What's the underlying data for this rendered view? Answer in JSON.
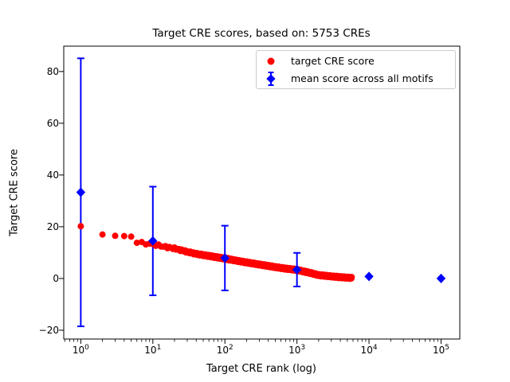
{
  "title": "Target CRE scores, based on: 5753 CREs",
  "axes": {
    "xlabel": "Target CRE rank (log)",
    "ylabel": "Target CRE score",
    "x_scale": "log",
    "x_ticks": [
      {
        "base": "10",
        "exp": "0",
        "value": 1
      },
      {
        "base": "10",
        "exp": "1",
        "value": 10
      },
      {
        "base": "10",
        "exp": "2",
        "value": 100
      },
      {
        "base": "10",
        "exp": "3",
        "value": 1000
      },
      {
        "base": "10",
        "exp": "4",
        "value": 10000
      },
      {
        "base": "10",
        "exp": "5",
        "value": 100000
      }
    ],
    "y_ticks": [
      {
        "label": "−20",
        "value": -20
      },
      {
        "label": "0",
        "value": 0
      },
      {
        "label": "20",
        "value": 20
      },
      {
        "label": "40",
        "value": 40
      },
      {
        "label": "60",
        "value": 60
      },
      {
        "label": "80",
        "value": 80
      }
    ]
  },
  "legend": {
    "items": [
      {
        "label": "target CRE score",
        "marker": "circle",
        "color": "#ff0000"
      },
      {
        "label": "mean score across all motifs",
        "marker": "diamond-errorbar",
        "color": "#0000ff"
      }
    ]
  },
  "colors": {
    "red": "#ff0000",
    "blue": "#0000ff",
    "text": "#000000",
    "spine": "#000000",
    "legend_border": "#cccccc",
    "background": "#ffffff"
  },
  "chart_data": {
    "type": "scatter",
    "title": "Target CRE scores, based on: 5753 CREs",
    "xlabel": "Target CRE rank (log)",
    "ylabel": "Target CRE score",
    "x_scale": "log",
    "grid": false,
    "legend_position": "upper right",
    "xlim": [
      0.58,
      182000
    ],
    "ylim": [
      -23.4,
      89.8
    ],
    "x_tick_values": [
      1,
      10,
      100,
      1000,
      10000,
      100000
    ],
    "y_tick_values": [
      -20,
      0,
      20,
      40,
      60,
      80
    ],
    "series": [
      {
        "name": "target CRE score",
        "type": "scatter",
        "marker": "circle",
        "color": "#ff0000",
        "total_points": 5753,
        "anchor_points": [
          [
            1,
            20.2
          ],
          [
            2,
            17.0
          ],
          [
            3,
            16.5
          ],
          [
            4,
            16.4
          ],
          [
            5,
            16.2
          ],
          [
            6,
            14.0
          ],
          [
            8,
            13.5
          ],
          [
            10,
            13.2
          ],
          [
            15,
            12.2
          ],
          [
            20,
            11.6
          ],
          [
            30,
            10.3
          ],
          [
            40,
            9.5
          ],
          [
            60,
            8.7
          ],
          [
            100,
            7.7
          ],
          [
            150,
            6.8
          ],
          [
            200,
            6.2
          ],
          [
            300,
            5.4
          ],
          [
            500,
            4.4
          ],
          [
            700,
            3.8
          ],
          [
            1000,
            3.3
          ],
          [
            1500,
            2.2
          ],
          [
            2000,
            1.3
          ],
          [
            3000,
            0.8
          ],
          [
            4000,
            0.5
          ],
          [
            5753,
            0.2
          ]
        ]
      },
      {
        "name": "mean score across all motifs",
        "type": "errorbar",
        "marker": "diamond",
        "color": "#0000ff",
        "x": [
          1,
          10,
          100,
          1000,
          10000,
          100000
        ],
        "y": [
          33.3,
          14.5,
          7.9,
          3.4,
          0.8,
          0.0
        ],
        "yerr": [
          51.8,
          21.0,
          12.5,
          6.5,
          0.0,
          0.0
        ]
      }
    ]
  }
}
